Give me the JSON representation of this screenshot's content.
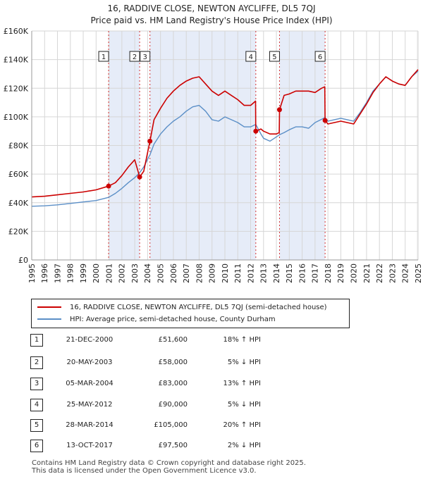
{
  "title_line1": "16, RADDIVE CLOSE, NEWTON AYCLIFFE, DL5 7QJ",
  "title_line2": "Price paid vs. HM Land Registry's House Price Index (HPI)",
  "legend": {
    "property": "16, RADDIVE CLOSE, NEWTON AYCLIFFE, DL5 7QJ (semi-detached house)",
    "hpi": "HPI: Average price, semi-detached house, County Durham"
  },
  "colors": {
    "property": "#cc0000",
    "hpi": "#5b8fc7",
    "band": "#e6ecf8",
    "marker_line": "#cc0000"
  },
  "sales": [
    {
      "num": "1",
      "date": "21-DEC-2000",
      "price": "£51,600",
      "hpi": "18% ↑ HPI",
      "x": 2000.97,
      "y": 51600
    },
    {
      "num": "2",
      "date": "20-MAY-2003",
      "price": "£58,000",
      "hpi": "5% ↓ HPI",
      "x": 2003.38,
      "y": 58000
    },
    {
      "num": "3",
      "date": "05-MAR-2004",
      "price": "£83,000",
      "hpi": "13% ↑ HPI",
      "x": 2004.18,
      "y": 83000
    },
    {
      "num": "4",
      "date": "25-MAY-2012",
      "price": "£90,000",
      "hpi": "5% ↓ HPI",
      "x": 2012.4,
      "y": 90000
    },
    {
      "num": "5",
      "date": "28-MAR-2014",
      "price": "£105,000",
      "hpi": "20% ↑ HPI",
      "x": 2014.24,
      "y": 105000
    },
    {
      "num": "6",
      "date": "13-OCT-2017",
      "price": "£97,500",
      "hpi": "2% ↓ HPI",
      "x": 2017.78,
      "y": 97500
    }
  ],
  "footer_line1": "Contains HM Land Registry data © Crown copyright and database right 2025.",
  "footer_line2": "This data is licensed under the Open Government Licence v3.0.",
  "chart_data": {
    "type": "line",
    "xlim": [
      1995,
      2025
    ],
    "ylim": [
      0,
      160000
    ],
    "x_ticks": [
      1995,
      1996,
      1997,
      1998,
      1999,
      2000,
      2001,
      2002,
      2003,
      2004,
      2005,
      2006,
      2007,
      2008,
      2009,
      2010,
      2011,
      2012,
      2013,
      2014,
      2015,
      2016,
      2017,
      2018,
      2019,
      2020,
      2021,
      2022,
      2023,
      2024,
      2025
    ],
    "x_tick_labels": [
      "1995",
      "1996",
      "1997",
      "1998",
      "1999",
      "2000",
      "2001",
      "2002",
      "2003",
      "2004",
      "2005",
      "2006",
      "2007",
      "2008",
      "2009",
      "2010",
      "2011",
      "2012",
      "2013",
      "2014",
      "2015",
      "2016",
      "2017",
      "2018",
      "2019",
      "2020",
      "2021",
      "2022",
      "2023",
      "2024",
      "2025"
    ],
    "y_ticks": [
      0,
      20000,
      40000,
      60000,
      80000,
      100000,
      120000,
      140000,
      160000
    ],
    "y_tick_labels": [
      "£0",
      "£20K",
      "£40K",
      "£60K",
      "£80K",
      "£100K",
      "£120K",
      "£140K",
      "£160K"
    ],
    "grid": true,
    "legend_position": "below",
    "series": [
      {
        "key": "hpi",
        "x": [
          1995,
          1996,
          1997,
          1998,
          1999,
          2000,
          2000.97,
          2001.5,
          2002,
          2002.5,
          2003,
          2003.38,
          2003.7,
          2004.18,
          2004.5,
          2005,
          2005.5,
          2006,
          2006.5,
          2007,
          2007.5,
          2008,
          2008.5,
          2009,
          2009.5,
          2010,
          2010.5,
          2011,
          2011.5,
          2012,
          2012.4,
          2012.8,
          2013,
          2013.5,
          2014,
          2014.24,
          2014.6,
          2015,
          2015.5,
          2016,
          2016.5,
          2017,
          2017.78,
          2018,
          2018.5,
          2019,
          2019.5,
          2020,
          2020.5,
          2021,
          2021.5,
          2022,
          2022.5,
          2023,
          2023.5,
          2024,
          2024.5,
          2025
        ],
        "y": [
          37500,
          37800,
          38500,
          39500,
          40500,
          41500,
          43700,
          46500,
          50000,
          54000,
          57500,
          61000,
          65000,
          73500,
          81000,
          88000,
          93000,
          97000,
          100000,
          104000,
          107000,
          108000,
          104000,
          98000,
          97000,
          100000,
          98000,
          96000,
          93000,
          93000,
          94700,
          88000,
          85000,
          83000,
          86000,
          87500,
          89000,
          91000,
          93000,
          93000,
          92000,
          96000,
          99500,
          97000,
          98000,
          99000,
          98000,
          97000,
          103000,
          110000,
          118000,
          123000,
          128000,
          125000,
          123000,
          122000,
          128000,
          132000
        ]
      },
      {
        "key": "property",
        "x": [
          1995,
          1996,
          1997,
          1998,
          1999,
          2000,
          2000.97,
          2001.5,
          2002,
          2002.5,
          2003,
          2003.38,
          2003.7,
          2004.18,
          2004.5,
          2005,
          2005.5,
          2006,
          2006.5,
          2007,
          2007.5,
          2008,
          2008.5,
          2009,
          2009.5,
          2010,
          2010.5,
          2011,
          2011.5,
          2012,
          2012.38,
          2012.4,
          2012.8,
          2013,
          2013.5,
          2014,
          2014.22,
          2014.24,
          2014.6,
          2015,
          2015.5,
          2016,
          2016.5,
          2017,
          2017.5,
          2017.76,
          2017.78,
          2018,
          2018.5,
          2019,
          2019.5,
          2020,
          2020.5,
          2021,
          2021.5,
          2022,
          2022.5,
          2023,
          2023.5,
          2024,
          2024.5,
          2025
        ],
        "y": [
          44000,
          44500,
          45500,
          46500,
          47500,
          49000,
          51600,
          54000,
          59000,
          65000,
          70000,
          58000,
          62000,
          83000,
          98000,
          106000,
          113000,
          118000,
          122000,
          125000,
          127000,
          128000,
          123000,
          118000,
          115000,
          118000,
          115000,
          112000,
          108000,
          108000,
          111000,
          90000,
          91500,
          90000,
          88000,
          88000,
          89000,
          105000,
          115000,
          116000,
          118000,
          118000,
          118000,
          117000,
          120000,
          121000,
          97500,
          95000,
          96000,
          97000,
          96000,
          95000,
          102000,
          109000,
          117000,
          123000,
          128000,
          125000,
          123000,
          122000,
          128000,
          133000
        ]
      }
    ]
  }
}
